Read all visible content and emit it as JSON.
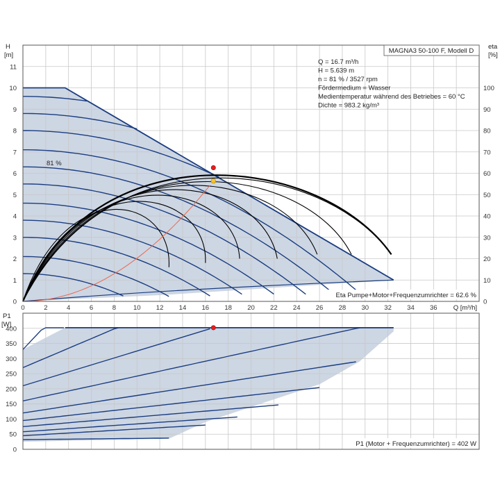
{
  "chart_data": [
    {
      "type": "line",
      "title": "MAGNA3 50-100 F, Modell D",
      "ylabel": "H",
      "ylabel_unit": "[m]",
      "y2label": "eta",
      "y2label_unit": "[%]",
      "xlabel": "Q [m³/h]",
      "xlim": [
        0,
        40
      ],
      "ylim": [
        0,
        12
      ],
      "y2lim": [
        0,
        120
      ],
      "grid": true,
      "x_ticks": [
        "0",
        "2",
        "4",
        "6",
        "8",
        "10",
        "12",
        "14",
        "16",
        "18",
        "20",
        "22",
        "24",
        "26",
        "28",
        "30",
        "32",
        "34",
        "36"
      ],
      "y_ticks": [
        "0",
        "1",
        "2",
        "3",
        "4",
        "5",
        "6",
        "7",
        "8",
        "9",
        "10",
        "11"
      ],
      "y2_ticks": [
        "0",
        "10",
        "20",
        "30",
        "40",
        "50",
        "60",
        "70",
        "80",
        "90",
        "100"
      ],
      "info_lines": [
        "Q = 16.7 m³/h",
        "H = 5.639 m",
        "n = 81 % / 3527 rpm",
        "Fördermedium = Wasser",
        "Medientemperatur während des Betriebes = 60 °C",
        "Dichte = 983.2 kg/m³"
      ],
      "curve_label": "81 %",
      "eta_note": "Eta Pumpe+Motor+Frequenzumrichter = 62.6 %",
      "operating_region": {
        "outline": [
          [
            0,
            0
          ],
          [
            0,
            10
          ],
          [
            3.7,
            10
          ],
          [
            32.5,
            1.0
          ],
          [
            12.3,
            0.3
          ]
        ]
      },
      "speed_curves_H": [
        {
          "h0": 9.6,
          "a": 0.007
        },
        {
          "h0": 8.8,
          "a": 0.0072
        },
        {
          "h0": 8.0,
          "a": 0.0074
        },
        {
          "h0": 7.1,
          "a": 0.0077
        },
        {
          "h0": 6.3,
          "a": 0.008
        },
        {
          "h0": 5.5,
          "a": 0.0084
        },
        {
          "h0": 4.6,
          "a": 0.0088
        },
        {
          "h0": 3.8,
          "a": 0.0094
        },
        {
          "h0": 3.0,
          "a": 0.0102
        },
        {
          "h0": 2.1,
          "a": 0.0114
        },
        {
          "h0": 1.3,
          "a": 0.0135
        }
      ],
      "eta_curves": [
        {
          "qmax": 32.3,
          "end_eta": 22,
          "peak_q": 17.0,
          "peak_eta": 63
        },
        {
          "qmax": 28.8,
          "end_eta": 22,
          "peak_q": 16.0,
          "peak_eta": 61
        },
        {
          "qmax": 25.8,
          "end_eta": 22,
          "peak_q": 14.8,
          "peak_eta": 59
        },
        {
          "qmax": 22.3,
          "end_eta": 20,
          "peak_q": 13.5,
          "peak_eta": 57
        },
        {
          "qmax": 19.0,
          "end_eta": 20,
          "peak_q": 12.0,
          "peak_eta": 54
        },
        {
          "qmax": 16.0,
          "end_eta": 18,
          "peak_q": 10.5,
          "peak_eta": 51
        },
        {
          "qmax": 12.8,
          "end_eta": 16,
          "peak_q": 8.5,
          "peak_eta": 47
        }
      ],
      "system_curve": {
        "q_end": 16.7,
        "h_end": 5.639
      },
      "duty_point": {
        "q": 16.7,
        "h": 5.639
      },
      "eta_point": {
        "q": 16.7,
        "eta": 62.6
      },
      "colors": {
        "region": "#cdd6e3",
        "blue": "#1a3d80",
        "eta": "#000000",
        "system": "#e86a50",
        "duty": "#f2c230",
        "eta_point": "#e02020"
      }
    },
    {
      "type": "line",
      "ylabel": "P1",
      "ylabel_unit": "[W]",
      "xlim": [
        0,
        40
      ],
      "ylim": [
        0,
        450
      ],
      "grid": true,
      "y_ticks": [
        "0",
        "50",
        "100",
        "150",
        "200",
        "250",
        "300",
        "350",
        "400"
      ],
      "power_note": "P1 (Motor + Frequenzumrichter) = 402 W",
      "power_limit": 402,
      "operating_region": {
        "outline": [
          [
            0,
            0
          ],
          [
            0,
            330
          ],
          [
            3.7,
            402
          ],
          [
            32.5,
            402
          ],
          [
            32.5,
            390
          ],
          [
            29.5,
            290
          ],
          [
            26,
            215
          ],
          [
            20,
            140
          ],
          [
            16,
            90
          ],
          [
            12.8,
            35
          ],
          [
            0,
            25
          ]
        ]
      },
      "power_curves": [
        {
          "p0": 330,
          "slope": 40,
          "qmax": 3.7
        },
        {
          "p0": 270,
          "slope": 16,
          "qmax": 8.5
        },
        {
          "p0": 210,
          "slope": 11.5,
          "qmax": 16.7
        },
        {
          "p0": 160,
          "slope": 8.2,
          "qmax": 32.5
        },
        {
          "p0": 120,
          "slope": 5.8,
          "qmax": 29.5
        },
        {
          "p0": 95,
          "slope": 4.2,
          "qmax": 26.0
        },
        {
          "p0": 75,
          "slope": 3.2,
          "qmax": 22.5
        },
        {
          "p0": 58,
          "slope": 2.6,
          "qmax": 19.0
        },
        {
          "p0": 45,
          "slope": 2.2,
          "qmax": 16.0
        },
        {
          "p0": 32,
          "slope": 0.4,
          "qmax": 12.8
        }
      ],
      "duty_point": {
        "q": 16.7,
        "p": 402
      }
    }
  ]
}
